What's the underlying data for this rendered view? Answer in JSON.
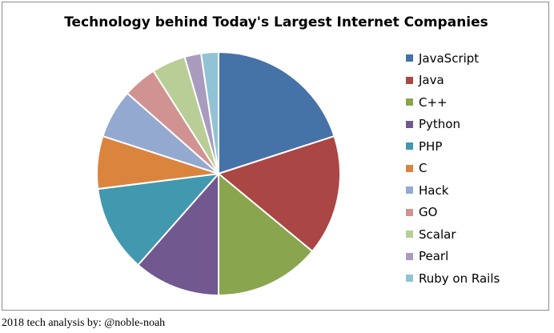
{
  "chart_data": {
    "type": "pie",
    "title": "Technology behind Today's Largest Internet Companies",
    "categories": [
      "JavaScript",
      "Java",
      "C++",
      "Python",
      "PHP",
      "C",
      "Hack",
      "GO",
      "Scalar",
      "Pearl",
      "Ruby on Rails"
    ],
    "values": [
      20,
      16,
      14,
      11.5,
      11.5,
      7,
      6.5,
      4.5,
      4.5,
      2.2,
      2.3
    ],
    "colors": [
      "#4572a7",
      "#aa4643",
      "#89a54e",
      "#71588f",
      "#4198af",
      "#db843d",
      "#93a9cf",
      "#d19392",
      "#b9cd96",
      "#a99bbd",
      "#91c3d5"
    ],
    "legend_position": "right",
    "start_angle": "top, clockwise"
  },
  "footer": {
    "note": "2018 tech analysis by: @noble-noah"
  }
}
